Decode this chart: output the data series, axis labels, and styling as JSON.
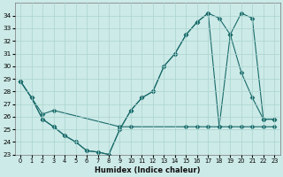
{
  "xlabel": "Humidex (Indice chaleur)",
  "xlim": [
    -0.5,
    23.5
  ],
  "ylim": [
    23,
    35
  ],
  "yticks": [
    23,
    24,
    25,
    26,
    27,
    28,
    29,
    30,
    31,
    32,
    33,
    34
  ],
  "xticks": [
    0,
    1,
    2,
    3,
    4,
    5,
    6,
    7,
    8,
    9,
    10,
    11,
    12,
    13,
    14,
    15,
    16,
    17,
    18,
    19,
    20,
    21,
    22,
    23
  ],
  "bg_color": "#cceae7",
  "grid_color": "#aad4d0",
  "line_color": "#1a6b6b",
  "line1_x": [
    0,
    1,
    2,
    3,
    4,
    5,
    6,
    7,
    8,
    9,
    10,
    11,
    12,
    13,
    14,
    15,
    16,
    17,
    18,
    19,
    20,
    21,
    22,
    23
  ],
  "line1_y": [
    28.8,
    27.5,
    25.8,
    25.2,
    24.5,
    24.0,
    23.3,
    23.2,
    23.0,
    25.0,
    26.5,
    27.5,
    28.0,
    30.0,
    31.0,
    32.5,
    33.5,
    34.2,
    25.2,
    25.2,
    25.2,
    25.2,
    25.2,
    25.2
  ],
  "line2_x": [
    0,
    1,
    2,
    3,
    4,
    5,
    6,
    7,
    8,
    9,
    10,
    11,
    12,
    13,
    14,
    15,
    16,
    17,
    18,
    19,
    20,
    21,
    22,
    23
  ],
  "line2_y": [
    28.8,
    27.5,
    25.8,
    25.2,
    24.5,
    24.0,
    23.3,
    23.2,
    23.0,
    25.0,
    26.5,
    27.5,
    28.0,
    30.0,
    31.0,
    32.5,
    33.5,
    34.2,
    33.8,
    32.5,
    29.5,
    27.5,
    25.8,
    25.8
  ],
  "line3_x": [
    0,
    2,
    3,
    9,
    10,
    15,
    16,
    17,
    18,
    19,
    20,
    21,
    22,
    23
  ],
  "line3_y": [
    28.8,
    26.2,
    26.5,
    25.2,
    25.2,
    25.2,
    25.2,
    25.2,
    25.2,
    32.5,
    34.2,
    33.8,
    25.8,
    25.8
  ]
}
